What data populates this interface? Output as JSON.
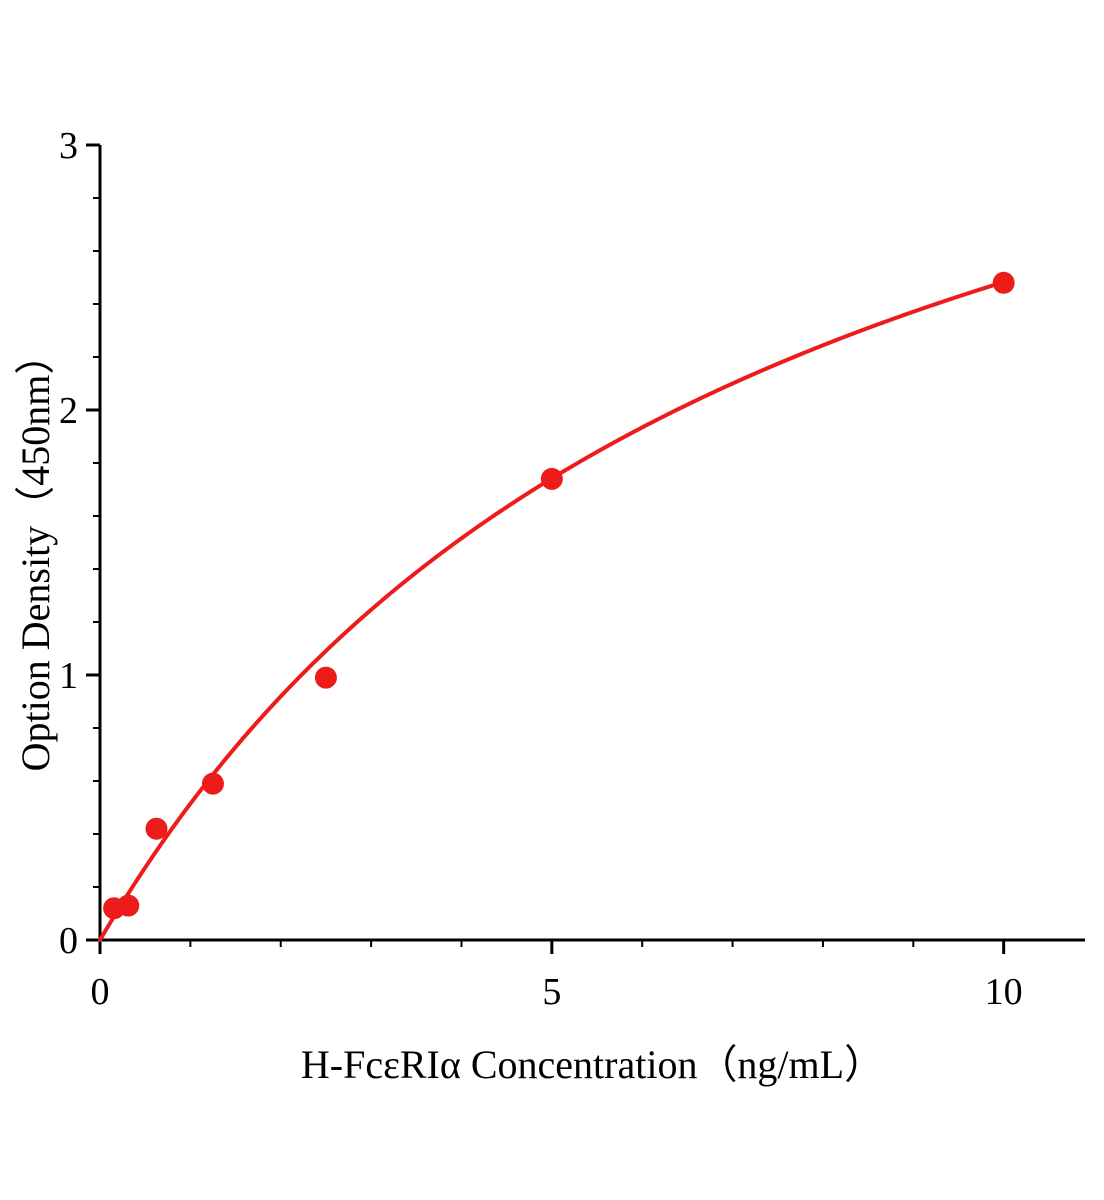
{
  "figure": {
    "background": "#ffffff"
  },
  "chart_data": {
    "type": "scatter",
    "title": "",
    "xlabel": "H-FcεRIα Concentration（ng/mL）",
    "ylabel": "Option Density（450nm）",
    "x": [
      0.156,
      0.313,
      0.625,
      1.25,
      2.5,
      5,
      10
    ],
    "y": [
      0.12,
      0.13,
      0.42,
      0.59,
      0.99,
      1.74,
      2.48
    ],
    "xlim": [
      0,
      10.9
    ],
    "ylim": [
      0,
      3
    ],
    "x_major_ticks": [
      0,
      5,
      10
    ],
    "x_major_tick_labels": [
      "0",
      "5",
      "10"
    ],
    "x_minor_ticks": [
      1,
      2,
      3,
      4,
      6,
      7,
      8,
      9
    ],
    "y_major_ticks": [
      0,
      1,
      2,
      3
    ],
    "y_major_tick_labels": [
      "0",
      "1",
      "2",
      "3"
    ],
    "y_minor_ticks": [
      0.2,
      0.4,
      0.6,
      0.8,
      1.2,
      1.4,
      1.6,
      1.8,
      2.2,
      2.4,
      2.6,
      2.8
    ],
    "grid": false,
    "legend": null,
    "marker_color": "#ee1b1b",
    "line_color": "#ee1b1b",
    "axis_color": "#000000",
    "fit_curve": {
      "model": "michaelis_menten",
      "vmax": 4.32,
      "km": 7.4,
      "x_start": 0,
      "x_end": 10
    }
  }
}
